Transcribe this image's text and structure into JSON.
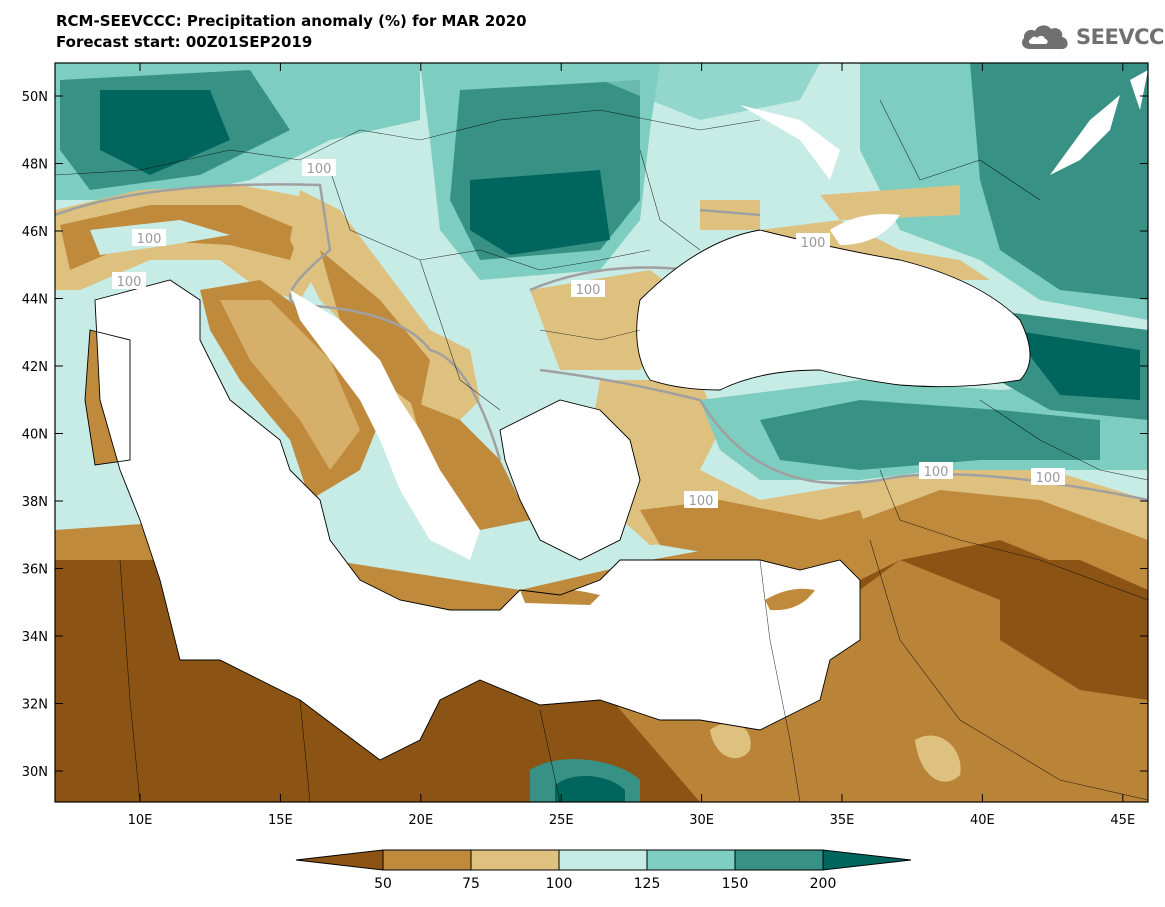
{
  "title_line1": "RCM-SEEVCCC: Precipitation anomaly (%) for MAR 2020",
  "title_line2": "Forecast start: 00Z01SEP2019",
  "logo": {
    "text": "SEEVCCC",
    "icon": "cloud-icon",
    "color": "#707070"
  },
  "map": {
    "lat_ticks": [
      "50N",
      "48N",
      "46N",
      "44N",
      "42N",
      "40N",
      "38N",
      "36N",
      "34N",
      "32N",
      "30N"
    ],
    "lon_ticks": [
      "10E",
      "15E",
      "20E",
      "25E",
      "30E",
      "35E",
      "40E",
      "45E"
    ],
    "contour_label": "100"
  },
  "colorbar": {
    "levels": [
      "50",
      "75",
      "100",
      "125",
      "150",
      "200"
    ],
    "colors": [
      "#8b5414",
      "#bf8a3c",
      "#dfc17f",
      "#c7ebe5",
      "#7ecdc1",
      "#379184",
      "#00665d"
    ]
  }
}
